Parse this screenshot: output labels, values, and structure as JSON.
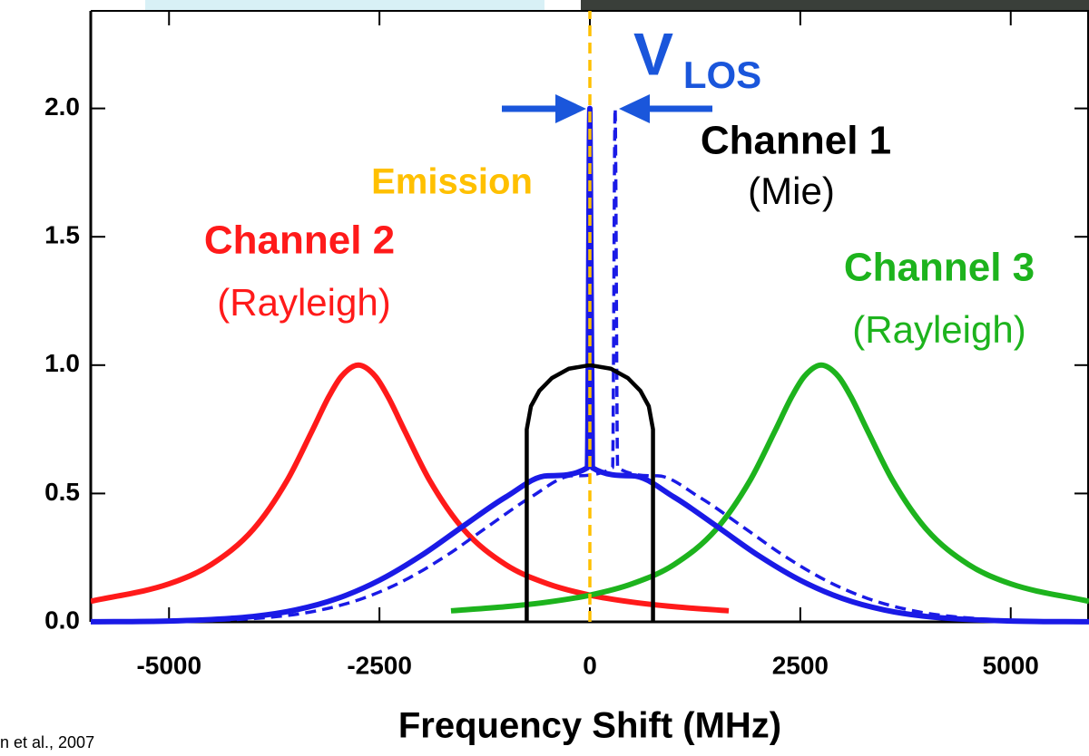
{
  "chart_data": {
    "type": "line",
    "xlabel": "Frequency Shift (MHz)",
    "xlim": [
      -5930,
      5930
    ],
    "xticks": [
      -5000,
      -2500,
      0,
      2500,
      5000
    ],
    "ylim": [
      0,
      2.38
    ],
    "yticks": [
      {
        "value": 0,
        "label": "0.0"
      },
      0.5,
      {
        "value": 1,
        "label": "1.0"
      },
      1.5,
      {
        "value": 2,
        "label": "2.0"
      }
    ],
    "series": [
      {
        "color": "#ff1a1a",
        "width": 6,
        "smooth": true,
        "x": [
          -5930,
          -5000,
          -4500,
          -4000,
          -3600,
          -3300,
          -3100,
          -2950,
          -2750,
          -2550,
          -2400,
          -2200,
          -1900,
          -1500,
          -1000,
          -500,
          0,
          500,
          1000,
          1650
        ],
        "values": [
          0.08,
          0.148,
          0.223,
          0.36,
          0.549,
          0.744,
          0.878,
          0.957,
          1.0,
          0.957,
          0.878,
          0.744,
          0.549,
          0.36,
          0.223,
          0.148,
          0.104,
          0.077,
          0.059,
          0.043
        ]
      },
      {
        "color": "#1db31d",
        "width": 6,
        "smooth": true,
        "x": [
          -1650,
          -1000,
          -500,
          0,
          500,
          1000,
          1500,
          1900,
          2200,
          2400,
          2550,
          2750,
          2950,
          3100,
          3300,
          3600,
          4000,
          4500,
          5000,
          5930
        ],
        "values": [
          0.043,
          0.059,
          0.077,
          0.104,
          0.148,
          0.223,
          0.36,
          0.549,
          0.744,
          0.878,
          0.957,
          1.0,
          0.957,
          0.878,
          0.744,
          0.549,
          0.36,
          0.223,
          0.148,
          0.08
        ]
      },
      {
        "color": "#1a1ae6",
        "width": 6,
        "smooth": true,
        "x": [
          -5930,
          -5000,
          -4000,
          -3500,
          -3000,
          -2500,
          -2000,
          -1500,
          -1000,
          -500,
          -30,
          0,
          30,
          500,
          1000,
          1500,
          2000,
          2500,
          3000,
          3500,
          4000,
          5000,
          5930
        ],
        "values": [
          0.0004,
          0.0032,
          0.021,
          0.046,
          0.091,
          0.162,
          0.259,
          0.374,
          0.486,
          0.569,
          0.6,
          2.0,
          0.6,
          0.569,
          0.486,
          0.374,
          0.259,
          0.162,
          0.091,
          0.046,
          0.021,
          0.0032,
          0.0004
        ]
      },
      {
        "color": "#1a1ae6",
        "width": 3.5,
        "smooth": true,
        "dashed": true,
        "x": [
          -5630,
          -4700,
          -3700,
          -3200,
          -2700,
          -2200,
          -1700,
          -1200,
          -700,
          -200,
          270,
          300,
          330,
          800,
          1300,
          1800,
          2300,
          2800,
          3300,
          3800,
          4300,
          5300,
          5930
        ],
        "values": [
          0.0004,
          0.0032,
          0.021,
          0.046,
          0.091,
          0.162,
          0.259,
          0.374,
          0.486,
          0.569,
          0.6,
          2.0,
          0.6,
          0.569,
          0.486,
          0.374,
          0.259,
          0.162,
          0.091,
          0.046,
          0.021,
          0.0032,
          0.0008
        ]
      },
      {
        "color": "#000000",
        "width": 4.5,
        "smooth": false,
        "x": [
          -750,
          -750,
          -700,
          -600,
          -450,
          -250,
          0,
          250,
          450,
          600,
          700,
          750,
          750
        ],
        "values": [
          0,
          0.75,
          0.84,
          0.9,
          0.95,
          0.986,
          1.0,
          0.986,
          0.95,
          0.9,
          0.84,
          0.75,
          0
        ]
      },
      {
        "color": "#ffc000",
        "width": 3.5,
        "smooth": false,
        "dashed": true,
        "x": [
          0,
          0
        ],
        "values": [
          0,
          2.38
        ]
      }
    ],
    "annotations": [
      {
        "text": "Emission",
        "color": "#ffc000",
        "bold": true
      },
      {
        "text": "V",
        "color": "#1a56db",
        "bold": true
      },
      {
        "text": "LOS",
        "color": "#1a56db",
        "bold": true
      },
      {
        "text": "Channel 1",
        "color": "#000000",
        "bold": true
      },
      {
        "text": "(Mie)",
        "color": "#000000",
        "bold": false
      },
      {
        "text": "Channel 2",
        "color": "#ff1a1a",
        "bold": true
      },
      {
        "text": "(Rayleigh)",
        "color": "#ff1a1a",
        "bold": false
      },
      {
        "text": "Channel 3",
        "color": "#1db31d",
        "bold": true
      },
      {
        "text": "(Rayleigh)",
        "color": "#1db31d",
        "bold": false
      }
    ],
    "source": "n et al., 2007"
  }
}
